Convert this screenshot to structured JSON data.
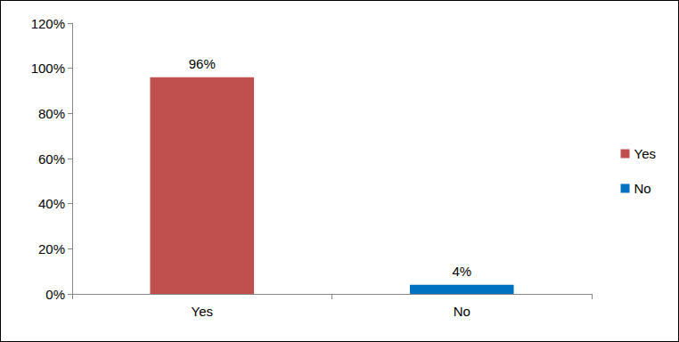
{
  "chart_data": {
    "type": "bar",
    "categories": [
      "Yes",
      "No"
    ],
    "values": [
      96,
      4
    ],
    "value_labels": [
      "96%",
      "4%"
    ],
    "colors": [
      "#c0504d",
      "#0070c0"
    ],
    "ylim": [
      0,
      120
    ],
    "yticks": [
      {
        "value": 0,
        "label": "0%"
      },
      {
        "value": 20,
        "label": "20%"
      },
      {
        "value": 40,
        "label": "40%"
      },
      {
        "value": 60,
        "label": "60%"
      },
      {
        "value": 80,
        "label": "80%"
      },
      {
        "value": 100,
        "label": "100%"
      },
      {
        "value": 120,
        "label": "120%"
      }
    ],
    "grid": false,
    "legend": "right",
    "data_labels": true
  }
}
